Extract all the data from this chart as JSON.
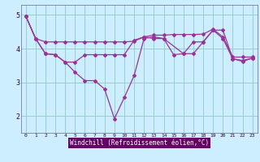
{
  "background_color": "#cceeff",
  "plot_bg_color": "#cceeff",
  "label_bg_color": "#660066",
  "grid_color": "#99cccc",
  "line_color": "#993399",
  "marker_color": "#993399",
  "spine_color": "#666699",
  "xlim": [
    -0.5,
    23.5
  ],
  "ylim": [
    1.5,
    5.3
  ],
  "yticks": [
    2,
    3,
    4,
    5
  ],
  "xticks": [
    0,
    1,
    2,
    3,
    4,
    5,
    6,
    7,
    8,
    9,
    10,
    11,
    12,
    13,
    14,
    15,
    16,
    17,
    18,
    19,
    20,
    21,
    22,
    23
  ],
  "xlabel": "Windchill (Refroidissement éolien,°C)",
  "curve1_x": [
    0,
    1,
    2,
    3,
    4,
    5,
    6,
    7,
    8,
    9,
    10,
    11,
    12,
    13,
    14,
    15,
    16,
    17,
    18,
    19,
    20,
    21,
    22,
    23
  ],
  "curve1_y": [
    4.97,
    4.3,
    4.2,
    4.2,
    4.2,
    4.2,
    4.2,
    4.2,
    4.2,
    4.2,
    4.2,
    4.22,
    4.35,
    4.4,
    4.4,
    4.42,
    4.42,
    4.42,
    4.43,
    4.58,
    4.35,
    3.75,
    3.75,
    3.75
  ],
  "curve2_x": [
    0,
    1,
    2,
    3,
    4,
    5,
    6,
    7,
    8,
    9,
    10,
    11,
    12,
    13,
    14,
    15,
    16,
    17,
    18,
    19,
    20,
    21,
    22,
    23
  ],
  "curve2_y": [
    4.97,
    4.3,
    3.85,
    3.82,
    3.6,
    3.6,
    3.82,
    3.82,
    3.82,
    3.82,
    3.82,
    4.25,
    4.35,
    4.3,
    4.3,
    3.82,
    3.85,
    4.2,
    4.2,
    4.55,
    4.3,
    3.7,
    3.65,
    3.72
  ],
  "curve3_x": [
    0,
    1,
    2,
    3,
    4,
    5,
    6,
    7,
    8,
    9,
    10,
    11,
    12,
    13,
    14,
    16,
    17,
    18,
    19,
    20,
    21,
    22,
    23
  ],
  "curve3_y": [
    4.97,
    4.3,
    3.85,
    3.82,
    3.6,
    3.3,
    3.05,
    3.05,
    2.8,
    1.92,
    2.55,
    3.2,
    4.3,
    4.35,
    4.3,
    3.85,
    3.85,
    4.2,
    4.55,
    4.55,
    3.7,
    3.62,
    3.72
  ]
}
